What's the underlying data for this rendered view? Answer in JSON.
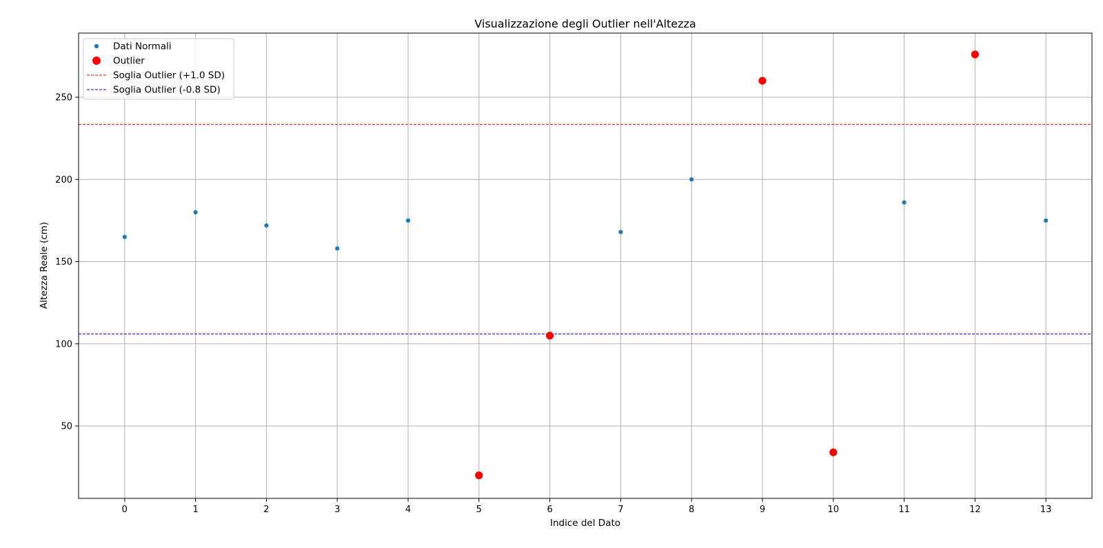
{
  "chart_data": {
    "type": "scatter",
    "title": "Visualizzazione degli Outlier nell'Altezza",
    "xlabel": "Indice del Dato",
    "ylabel": "Altezza Reale (cm)",
    "xlim": [
      -0.65,
      13.65
    ],
    "ylim": [
      6,
      289
    ],
    "xticks": [
      0,
      1,
      2,
      3,
      4,
      5,
      6,
      7,
      8,
      9,
      10,
      11,
      12,
      13
    ],
    "yticks": [
      50,
      100,
      150,
      200,
      250
    ],
    "grid": true,
    "legend_position": "top-left",
    "series": [
      {
        "name": "Dati Normali",
        "kind": "points",
        "color": "#1f77b4",
        "size": "small",
        "x": [
          0,
          1,
          2,
          3,
          4,
          7,
          8,
          11,
          13
        ],
        "y": [
          165,
          180,
          172,
          158,
          175,
          168,
          200,
          186,
          175
        ]
      },
      {
        "name": "Outlier",
        "kind": "points",
        "color": "#ff0000",
        "size": "large",
        "x": [
          5,
          6,
          9,
          10,
          12
        ],
        "y": [
          20,
          105,
          260,
          34,
          276
        ]
      },
      {
        "name": "Soglia Outlier (+1.0 SD)",
        "kind": "hline",
        "color": "#ff0000",
        "style": "dashed",
        "y": 233.5
      },
      {
        "name": "Soglia Outlier (-0.8 SD)",
        "kind": "hline",
        "color": "#0000ff",
        "style": "dashed",
        "y": 106
      }
    ]
  }
}
